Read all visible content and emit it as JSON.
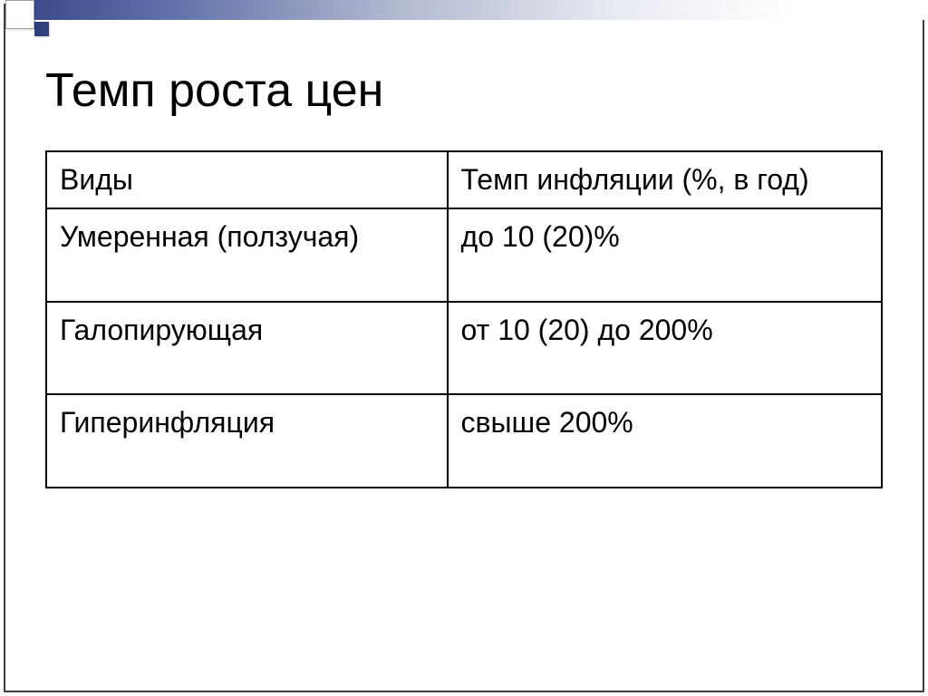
{
  "slide": {
    "title": "Темп роста цен",
    "table": {
      "header": {
        "col1": "Виды",
        "col2": "Темп инфляции (%, в год)"
      },
      "rows": [
        {
          "type": "Умеренная (ползучая)",
          "rate": "до 10 (20)%"
        },
        {
          "type": "Галопирующая",
          "rate": "от 10 (20) до 200%"
        },
        {
          "type": "Гиперинфляция",
          "rate": "свыше 200%"
        }
      ]
    }
  },
  "style": {
    "background_color": "#ffffff",
    "title_color": "#000000",
    "title_fontsize": 52,
    "cell_fontsize": 32,
    "border_color": "#000000",
    "gradient_start": "#3c4c8c",
    "gradient_end": "#ffffff",
    "accent_square_color": "#30407c",
    "frame_color": "#404040"
  }
}
